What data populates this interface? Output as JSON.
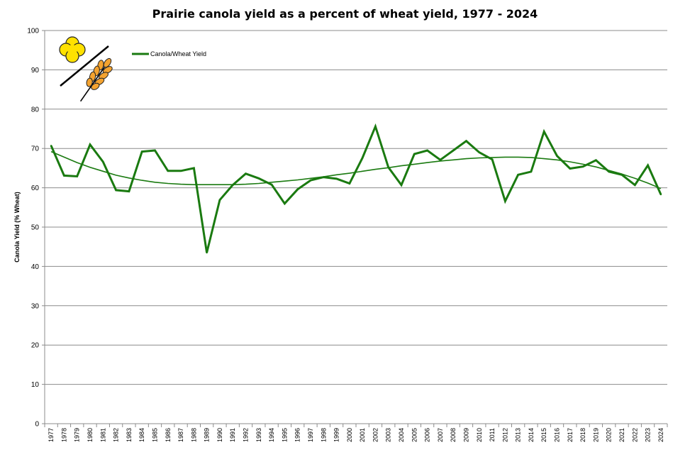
{
  "chart_data": {
    "type": "line",
    "title": "Prairie canola yield as a percent of wheat yield, 1977 - 2024",
    "xlabel": "",
    "ylabel": "Canola Yield (% Wheat)",
    "ylim": [
      0,
      100
    ],
    "yticks": [
      0,
      10,
      20,
      30,
      40,
      50,
      60,
      70,
      80,
      90,
      100
    ],
    "grid": true,
    "legend_position": "top-left",
    "x": [
      1977,
      1978,
      1979,
      1980,
      1981,
      1982,
      1983,
      1984,
      1985,
      1986,
      1987,
      1988,
      1989,
      1990,
      1991,
      1992,
      1993,
      1994,
      1995,
      1996,
      1997,
      1998,
      1999,
      2000,
      2001,
      2002,
      2003,
      2004,
      2005,
      2006,
      2007,
      2008,
      2009,
      2010,
      2011,
      2012,
      2013,
      2014,
      2015,
      2016,
      2017,
      2018,
      2019,
      2020,
      2021,
      2022,
      2023,
      2024
    ],
    "series": [
      {
        "name": "Canola/Wheat Yield",
        "color": "#1a7a10",
        "values": [
          70.7,
          63.1,
          62.9,
          71.0,
          66.6,
          59.4,
          59.1,
          69.2,
          69.5,
          64.3,
          64.3,
          65.0,
          43.5,
          56.9,
          60.7,
          63.6,
          62.4,
          60.8,
          56.0,
          59.6,
          61.9,
          62.7,
          62.3,
          61.1,
          67.6,
          75.6,
          65.2,
          60.7,
          68.6,
          69.5,
          67.1,
          69.5,
          71.9,
          69.0,
          67.2,
          56.6,
          63.3,
          64.1,
          74.3,
          68.1,
          64.9,
          65.4,
          67.0,
          64.1,
          63.3,
          60.7,
          65.7,
          58.3
        ]
      }
    ],
    "trendline": {
      "color": "#1a7a10",
      "values": [
        69.2,
        67.8,
        66.4,
        65.2,
        64.2,
        63.2,
        62.5,
        61.9,
        61.4,
        61.1,
        60.9,
        60.8,
        60.8,
        60.8,
        60.8,
        60.9,
        61.1,
        61.4,
        61.7,
        62.0,
        62.4,
        62.8,
        63.3,
        63.7,
        64.2,
        64.7,
        65.1,
        65.6,
        66.0,
        66.4,
        66.8,
        67.1,
        67.4,
        67.6,
        67.7,
        67.8,
        67.8,
        67.7,
        67.4,
        67.1,
        66.6,
        66.0,
        65.3,
        64.4,
        63.5,
        62.4,
        61.2,
        59.8
      ]
    }
  },
  "legend": {
    "label": "Canola/Wheat Yield"
  },
  "logo": {
    "flower_color": "#ffe100",
    "wheat_color": "#f4a330",
    "icons": [
      "canola-flower-icon",
      "wheat-icon"
    ]
  }
}
